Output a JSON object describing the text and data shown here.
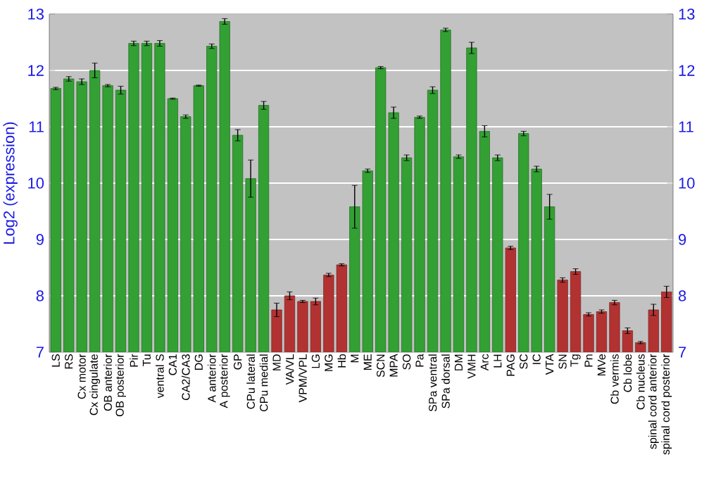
{
  "chart_data": {
    "type": "bar",
    "ylabel": "Log2 (expression)",
    "categories": [
      "LS",
      "RS",
      "Cx motor",
      "Cx cingulate",
      "OB anterior",
      "OB posterior",
      "Pir",
      "Tu",
      "ventral S",
      "CA1",
      "CA2/CA3",
      "DG",
      "A anterior",
      "A posterior",
      "GP",
      "CPu lateral",
      "CPu medial",
      "MD",
      "VA/VL",
      "VPM/VPL",
      "LG",
      "MG",
      "Hb",
      "M",
      "ME",
      "SCN",
      "MPA",
      "SO",
      "Pa",
      "SPa ventral",
      "SPa dorsal",
      "DM",
      "VMH",
      "Arc",
      "LH",
      "PAG",
      "SC",
      "IC",
      "VTA",
      "SN",
      "Tg",
      "Pn",
      "MVe",
      "Cb vermis",
      "Cb lobe",
      "Cb nucleus",
      "spinal cord anterior",
      "spinal cord posterior"
    ],
    "values": [
      11.68,
      11.85,
      11.8,
      12.0,
      11.73,
      11.65,
      12.48,
      12.48,
      12.48,
      11.5,
      11.18,
      11.73,
      12.43,
      12.87,
      10.85,
      10.08,
      11.38,
      7.75,
      8.0,
      7.9,
      7.9,
      8.37,
      8.55,
      9.58,
      10.22,
      12.05,
      11.25,
      10.45,
      11.17,
      11.65,
      12.72,
      10.47,
      12.4,
      10.92,
      10.45,
      8.85,
      10.88,
      10.25,
      9.58,
      8.28,
      8.43,
      7.67,
      7.72,
      7.88,
      7.38,
      7.17,
      7.75,
      8.07
    ],
    "errors": [
      0.02,
      0.04,
      0.05,
      0.13,
      0.02,
      0.07,
      0.04,
      0.04,
      0.05,
      0.01,
      0.03,
      0.01,
      0.04,
      0.05,
      0.1,
      0.33,
      0.07,
      0.12,
      0.07,
      0.02,
      0.06,
      0.03,
      0.02,
      0.38,
      0.03,
      0.02,
      0.1,
      0.05,
      0.02,
      0.06,
      0.03,
      0.03,
      0.1,
      0.1,
      0.05,
      0.03,
      0.04,
      0.05,
      0.22,
      0.04,
      0.05,
      0.03,
      0.03,
      0.04,
      0.05,
      0.02,
      0.1,
      0.1
    ],
    "colors": [
      "#33a033",
      "#33a033",
      "#33a033",
      "#33a033",
      "#33a033",
      "#33a033",
      "#33a033",
      "#33a033",
      "#33a033",
      "#33a033",
      "#33a033",
      "#33a033",
      "#33a033",
      "#33a033",
      "#33a033",
      "#33a033",
      "#33a033",
      "#b23232",
      "#b23232",
      "#b23232",
      "#b23232",
      "#b23232",
      "#b23232",
      "#33a033",
      "#33a033",
      "#33a033",
      "#33a033",
      "#33a033",
      "#33a033",
      "#33a033",
      "#33a033",
      "#33a033",
      "#33a033",
      "#33a033",
      "#33a033",
      "#b23232",
      "#33a033",
      "#33a033",
      "#33a033",
      "#b23232",
      "#b23232",
      "#b23232",
      "#b23232",
      "#b23232",
      "#b23232",
      "#b23232",
      "#b23232",
      "#b23232"
    ],
    "ylim": [
      7,
      13
    ],
    "yticks": [
      7,
      8,
      9,
      10,
      11,
      12,
      13
    ],
    "y2lim": [
      7,
      13
    ],
    "y2ticks": [
      7,
      8,
      9,
      10,
      11,
      12,
      13
    ],
    "grid": "y"
  }
}
